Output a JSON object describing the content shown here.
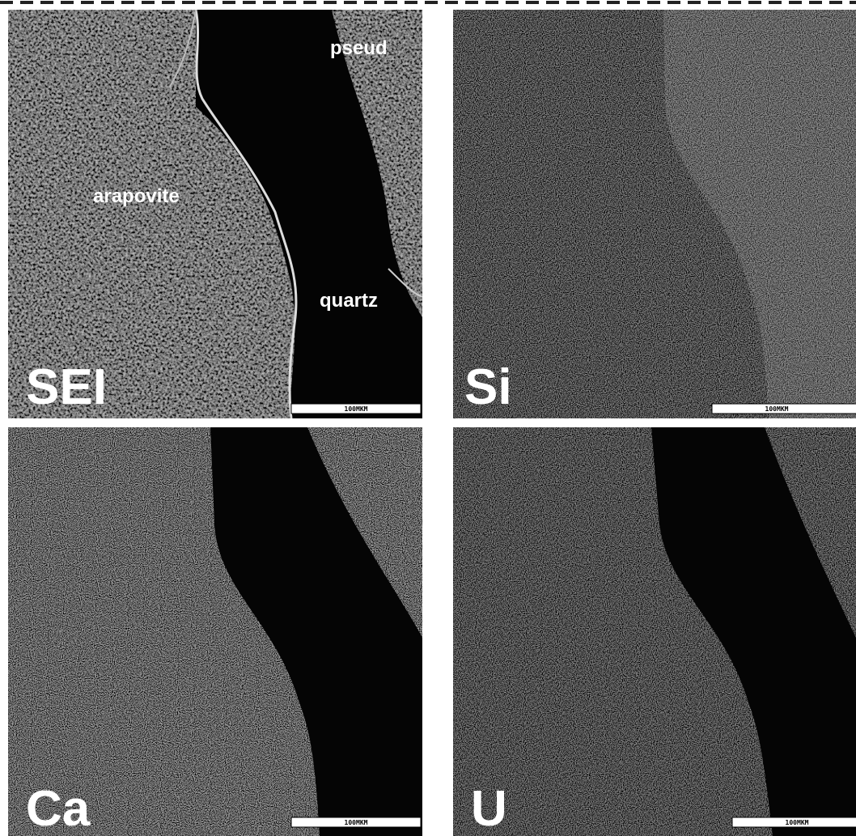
{
  "panels": [
    {
      "label": "SEI",
      "scale_bar": "100MKM",
      "annotations": [
        "pseud",
        "arapovite",
        "quartz"
      ]
    },
    {
      "label": "Si",
      "scale_bar": "100MKM"
    },
    {
      "label": "Ca",
      "scale_bar": "100MKM"
    },
    {
      "label": "U",
      "scale_bar": "100MKM"
    }
  ]
}
